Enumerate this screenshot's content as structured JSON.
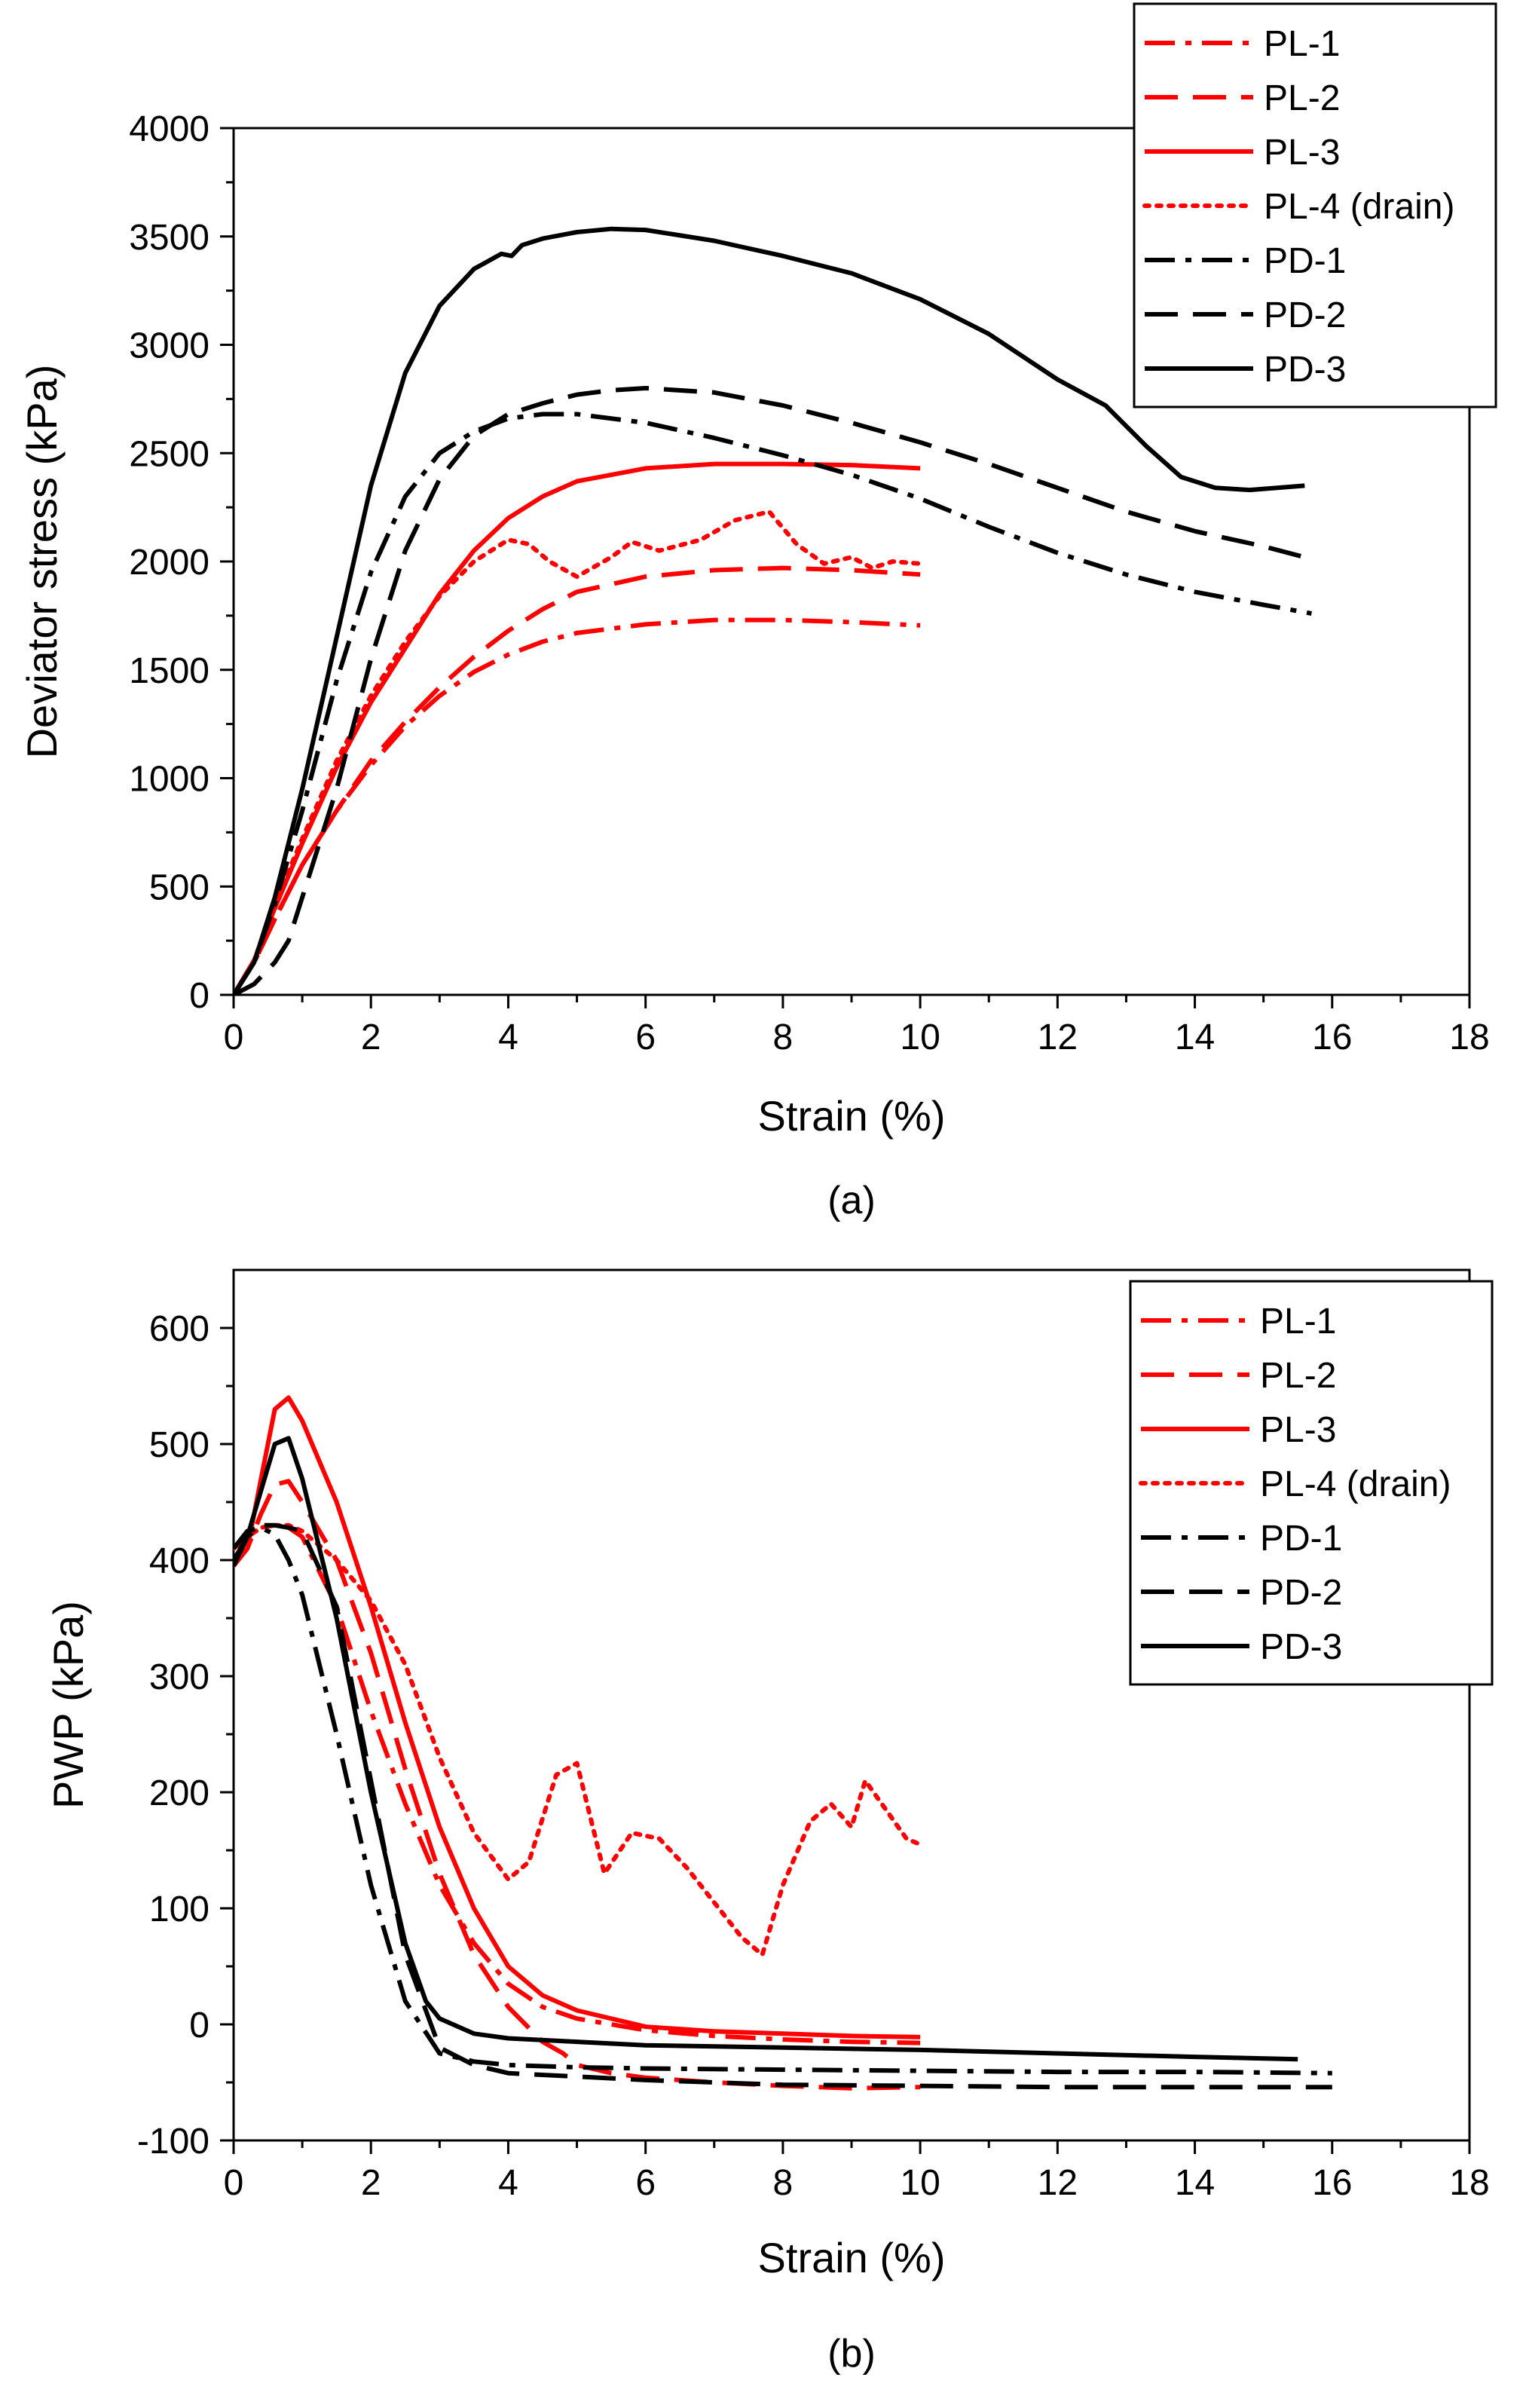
{
  "colors": {
    "red": "#ff0000",
    "black": "#000000"
  },
  "chart_data": [
    {
      "type": "line",
      "panel_label": "(a)",
      "xlabel": "Strain (%)",
      "ylabel": "Deviator stress (kPa)",
      "xlim": [
        0,
        18
      ],
      "ylim": [
        0,
        4000
      ],
      "xticks": [
        0,
        2,
        4,
        6,
        8,
        10,
        12,
        14,
        16,
        18
      ],
      "yticks": [
        0,
        500,
        1000,
        1500,
        2000,
        2500,
        3000,
        3500,
        4000
      ],
      "legend_position": "top-right",
      "series": [
        {
          "name": "PL-1",
          "color": "#ff0000",
          "style": "dashdot",
          "x": [
            0,
            0.3,
            0.6,
            1,
            1.5,
            2,
            2.5,
            3,
            3.5,
            4,
            4.5,
            5,
            6,
            7,
            8,
            9,
            10
          ],
          "y": [
            0,
            150,
            350,
            600,
            850,
            1060,
            1240,
            1380,
            1490,
            1570,
            1630,
            1670,
            1710,
            1730,
            1730,
            1720,
            1705
          ]
        },
        {
          "name": "PL-2",
          "color": "#ff0000",
          "style": "dashed",
          "x": [
            0,
            0.3,
            0.6,
            1,
            1.5,
            2,
            2.5,
            3,
            3.5,
            4,
            4.5,
            5,
            6,
            7,
            8,
            9,
            10
          ],
          "y": [
            0,
            150,
            350,
            600,
            850,
            1080,
            1260,
            1420,
            1560,
            1680,
            1780,
            1860,
            1930,
            1960,
            1970,
            1960,
            1940
          ]
        },
        {
          "name": "PL-3",
          "color": "#ff0000",
          "style": "solid",
          "x": [
            0,
            0.3,
            0.6,
            1,
            1.5,
            2,
            2.5,
            3,
            3.5,
            4,
            4.5,
            5,
            6,
            7,
            8,
            9,
            10
          ],
          "y": [
            0,
            160,
            400,
            700,
            1050,
            1350,
            1600,
            1850,
            2050,
            2200,
            2300,
            2370,
            2430,
            2450,
            2450,
            2445,
            2430
          ]
        },
        {
          "name": "PL-4 (drain)",
          "color": "#ff0000",
          "style": "dotted",
          "x": [
            0,
            0.3,
            0.6,
            1,
            1.5,
            2,
            2.5,
            3,
            3.5,
            4,
            4.3,
            4.6,
            5,
            5.5,
            5.8,
            6.2,
            6.8,
            7.3,
            7.8,
            8.2,
            8.6,
            9,
            9.3,
            9.6,
            10
          ],
          "y": [
            0,
            160,
            420,
            720,
            1080,
            1380,
            1630,
            1840,
            2000,
            2100,
            2080,
            2000,
            1930,
            2020,
            2090,
            2050,
            2100,
            2190,
            2230,
            2080,
            1990,
            2020,
            1970,
            2000,
            1990
          ]
        },
        {
          "name": "PD-1",
          "color": "#000000",
          "style": "dashdot",
          "x": [
            0,
            0.3,
            0.6,
            1,
            1.5,
            2,
            2.5,
            3,
            3.5,
            4,
            4.5,
            5,
            6,
            7,
            8,
            9,
            10,
            11,
            12,
            13,
            14,
            15,
            15.7
          ],
          "y": [
            0,
            150,
            420,
            850,
            1450,
            1950,
            2300,
            2500,
            2600,
            2660,
            2680,
            2680,
            2640,
            2570,
            2490,
            2400,
            2290,
            2160,
            2040,
            1940,
            1860,
            1800,
            1760
          ]
        },
        {
          "name": "PD-2",
          "color": "#000000",
          "style": "dashed",
          "x": [
            0,
            0.3,
            0.6,
            0.8,
            1,
            1.5,
            2,
            2.5,
            3,
            3.5,
            4,
            4.5,
            5,
            5.5,
            6,
            7,
            8,
            9,
            10,
            11,
            12,
            13,
            14,
            15,
            15.6
          ],
          "y": [
            0,
            50,
            150,
            250,
            450,
            950,
            1550,
            2050,
            2380,
            2580,
            2680,
            2730,
            2770,
            2790,
            2800,
            2780,
            2720,
            2640,
            2550,
            2450,
            2340,
            2230,
            2140,
            2070,
            2020
          ]
        },
        {
          "name": "PD-3",
          "color": "#000000",
          "style": "solid",
          "x": [
            0,
            0.3,
            0.6,
            1,
            1.5,
            2,
            2.5,
            3,
            3.5,
            3.9,
            4.05,
            4.2,
            4.5,
            5,
            5.5,
            6,
            7,
            8,
            9,
            10,
            11,
            12,
            12.7,
            13.3,
            13.8,
            14.3,
            14.8,
            15.2,
            15.6
          ],
          "y": [
            0,
            150,
            450,
            950,
            1650,
            2350,
            2870,
            3180,
            3350,
            3420,
            3410,
            3460,
            3490,
            3520,
            3535,
            3530,
            3480,
            3410,
            3330,
            3210,
            3050,
            2840,
            2720,
            2530,
            2390,
            2340,
            2330,
            2340,
            2350
          ]
        }
      ]
    },
    {
      "type": "line",
      "panel_label": "(b)",
      "xlabel": "Strain (%)",
      "ylabel": "PWP (kPa)",
      "xlim": [
        0,
        18
      ],
      "ylim": [
        -100,
        650
      ],
      "xticks": [
        0,
        2,
        4,
        6,
        8,
        10,
        12,
        14,
        16,
        18
      ],
      "yticks": [
        -100,
        0,
        100,
        200,
        300,
        400,
        500,
        600
      ],
      "legend_position": "top-right",
      "series": [
        {
          "name": "PL-1",
          "color": "#ff0000",
          "style": "dashdot",
          "x": [
            0,
            0.2,
            0.4,
            0.6,
            0.8,
            1,
            1.5,
            2,
            2.5,
            3,
            3.5,
            4,
            4.5,
            5,
            6,
            7,
            8,
            9,
            10
          ],
          "y": [
            410,
            420,
            428,
            430,
            428,
            420,
            360,
            270,
            190,
            120,
            70,
            35,
            15,
            5,
            -5,
            -10,
            -13,
            -15,
            -16
          ]
        },
        {
          "name": "PL-2",
          "color": "#ff0000",
          "style": "dashed",
          "x": [
            0,
            0.2,
            0.4,
            0.6,
            0.8,
            1,
            1.5,
            2,
            2.5,
            3,
            3.5,
            4,
            4.5,
            4.8,
            5,
            5.5,
            6,
            7,
            8,
            9,
            10
          ],
          "y": [
            395,
            410,
            440,
            465,
            468,
            450,
            400,
            320,
            220,
            130,
            60,
            15,
            -15,
            -25,
            -35,
            -42,
            -46,
            -50,
            -53,
            -55,
            -54
          ]
        },
        {
          "name": "PL-3",
          "color": "#ff0000",
          "style": "solid",
          "x": [
            0,
            0.2,
            0.4,
            0.6,
            0.8,
            1,
            1.5,
            2,
            2.5,
            3,
            3.5,
            4,
            4.5,
            5,
            5.5,
            6,
            7,
            8,
            9,
            10
          ],
          "y": [
            395,
            410,
            470,
            530,
            540,
            520,
            450,
            360,
            260,
            170,
            100,
            50,
            25,
            12,
            5,
            -2,
            -6,
            -8,
            -10,
            -11
          ]
        },
        {
          "name": "PL-4 (drain)",
          "color": "#ff0000",
          "style": "dotted",
          "x": [
            0,
            0.2,
            0.4,
            0.6,
            0.8,
            1,
            1.5,
            2,
            2.5,
            3,
            3.5,
            4,
            4.3,
            4.7,
            5,
            5.4,
            5.8,
            6.2,
            6.6,
            7,
            7.4,
            7.7,
            8,
            8.4,
            8.7,
            9,
            9.2,
            9.5,
            9.8,
            10
          ],
          "y": [
            410,
            420,
            428,
            430,
            430,
            425,
            400,
            365,
            310,
            230,
            165,
            125,
            140,
            215,
            225,
            130,
            165,
            160,
            135,
            105,
            75,
            60,
            120,
            175,
            190,
            170,
            210,
            185,
            160,
            155
          ]
        },
        {
          "name": "PD-1",
          "color": "#000000",
          "style": "dashdot",
          "x": [
            0,
            0.2,
            0.4,
            0.6,
            0.8,
            1,
            1.5,
            2,
            2.5,
            3,
            3.5,
            4,
            5,
            6,
            8,
            10,
            12,
            14,
            16
          ],
          "y": [
            410,
            425,
            428,
            422,
            400,
            370,
            250,
            120,
            20,
            -25,
            -32,
            -35,
            -37,
            -38,
            -39,
            -40,
            -41,
            -41,
            -42
          ]
        },
        {
          "name": "PD-2",
          "color": "#000000",
          "style": "dashed",
          "x": [
            0,
            0.2,
            0.4,
            0.6,
            0.8,
            1,
            1.5,
            2,
            2.5,
            3,
            3.5,
            4,
            5,
            6,
            8,
            10,
            12,
            14,
            16
          ],
          "y": [
            400,
            420,
            430,
            430,
            428,
            425,
            360,
            210,
            60,
            -20,
            -35,
            -42,
            -45,
            -48,
            -52,
            -53,
            -54,
            -54,
            -54
          ]
        },
        {
          "name": "PD-3",
          "color": "#000000",
          "style": "solid",
          "x": [
            0,
            0.2,
            0.4,
            0.6,
            0.8,
            1,
            1.5,
            2,
            2.5,
            2.8,
            3,
            3.5,
            4,
            5,
            6,
            8,
            10,
            12,
            14,
            15.5
          ],
          "y": [
            395,
            420,
            460,
            500,
            505,
            470,
            350,
            200,
            70,
            20,
            5,
            -8,
            -12,
            -15,
            -18,
            -20,
            -22,
            -25,
            -28,
            -30
          ]
        }
      ]
    }
  ]
}
